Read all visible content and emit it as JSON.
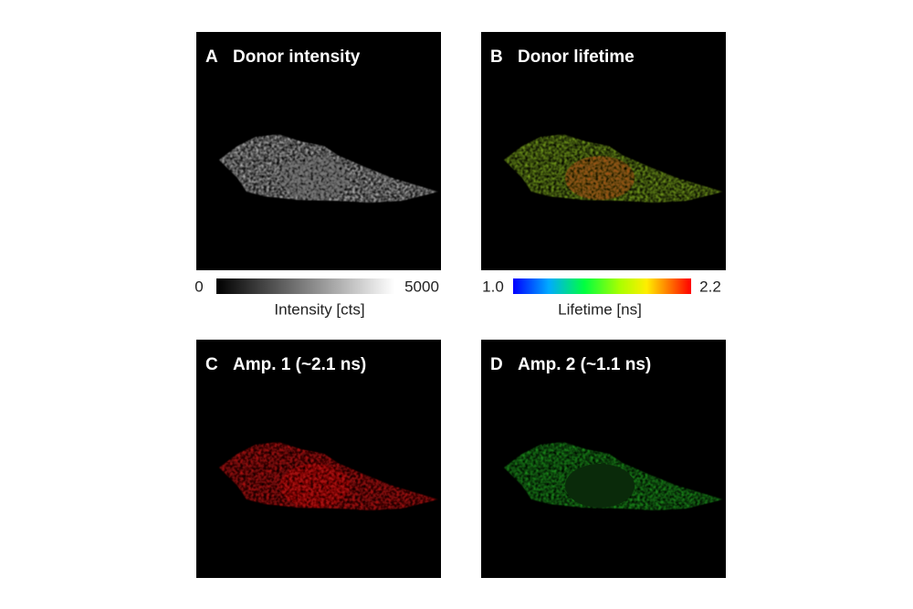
{
  "panels": [
    {
      "letter": "A",
      "title": "Donor intensity",
      "colorbar": {
        "min": "0",
        "max": "5000",
        "label": "Intensity [cts]"
      }
    },
    {
      "letter": "B",
      "title": "Donor lifetime",
      "colorbar": {
        "min": "1.0",
        "max": "2.2",
        "label": "Lifetime [ns]"
      }
    },
    {
      "letter": "C",
      "title": "Amp. 1 (~2.1 ns)"
    },
    {
      "letter": "D",
      "title": "Amp. 2 (~1.1 ns)"
    }
  ]
}
